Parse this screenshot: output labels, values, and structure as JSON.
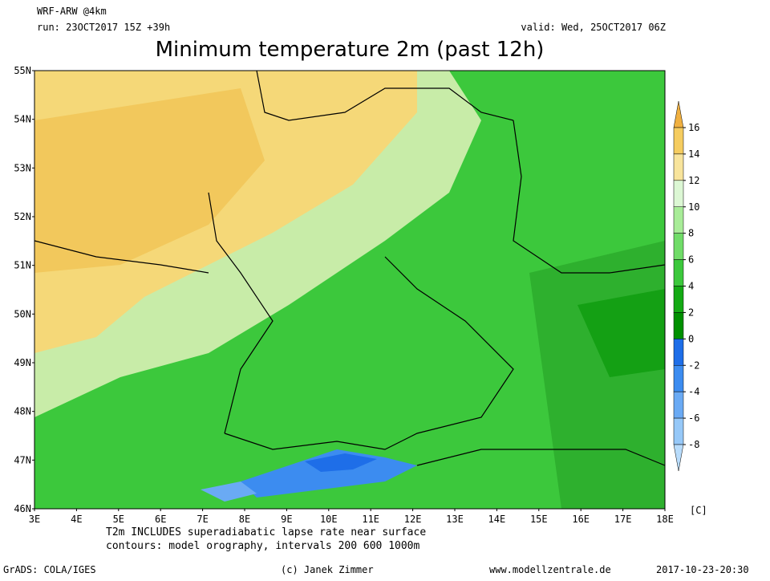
{
  "header": {
    "model": "WRF-ARW @4km",
    "run": "run: 23OCT2017 15Z +39h",
    "valid": "valid: Wed, 25OCT2017 06Z",
    "title": "Minimum temperature 2m (past 12h)"
  },
  "map": {
    "lat_labels": [
      "55N",
      "54N",
      "53N",
      "52N",
      "51N",
      "50N",
      "49N",
      "48N",
      "47N",
      "46N"
    ],
    "lon_labels": [
      "3E",
      "4E",
      "5E",
      "6E",
      "7E",
      "8E",
      "9E",
      "10E",
      "11E",
      "12E",
      "13E",
      "14E",
      "15E",
      "16E",
      "17E",
      "18E"
    ]
  },
  "colorbar": {
    "ticks": [
      16,
      14,
      12,
      10,
      8,
      6,
      4,
      2,
      0,
      -2,
      -4,
      -6,
      -8
    ],
    "unit": "[C]",
    "colors": [
      "#f0b040",
      "#f5cc60",
      "#f8e49c",
      "#dcf7d4",
      "#a8ec98",
      "#70dc68",
      "#3cc83c",
      "#14aa14",
      "#009000",
      "#1e6ee8",
      "#3c8cf0",
      "#6aaaf4",
      "#96c8f8",
      "#b8dcfc"
    ]
  },
  "notes": [
    "T2m INCLUDES superadiabatic lapse rate near surface",
    "contours: model orography, intervals 200 600 1000m"
  ],
  "footer": {
    "left": "GrADS: COLA/IGES",
    "center": "(c) Janek Zimmer",
    "right": "www.modellzentrale.de",
    "date": "2017-10-23-20:30"
  }
}
